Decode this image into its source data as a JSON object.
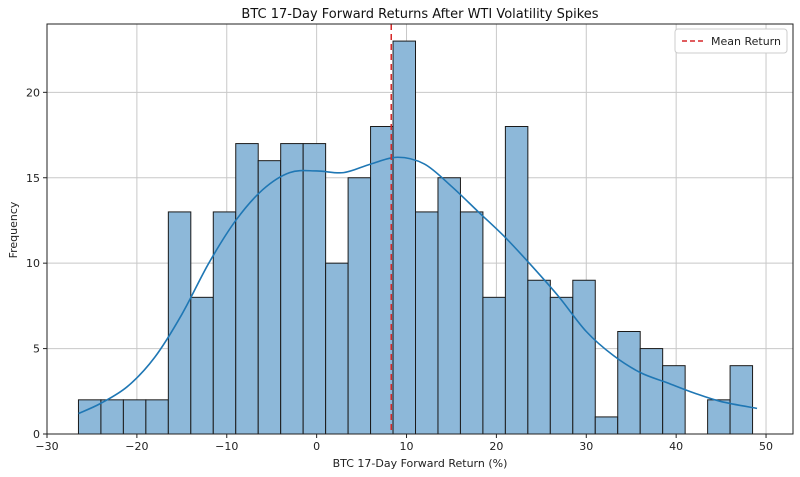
{
  "chart_data": {
    "type": "bar",
    "title": "BTC 17-Day Forward Returns After WTI Volatility Spikes",
    "xlabel": "BTC 17-Day Forward Return (%)",
    "ylabel": "Frequency",
    "xlim": [
      -30,
      53
    ],
    "ylim": [
      0,
      24
    ],
    "xticks": [
      -30,
      -20,
      -10,
      0,
      10,
      20,
      30,
      40,
      50
    ],
    "yticks": [
      0,
      5,
      10,
      15,
      20
    ],
    "grid": true,
    "legend_position": "top-right",
    "bins": {
      "edges": [
        -26.5,
        -24.0,
        -21.5,
        -19.0,
        -16.5,
        -14.0,
        -11.5,
        -9.0,
        -6.5,
        -4.0,
        -1.5,
        1.0,
        3.5,
        6.0,
        8.5,
        11.0,
        13.5,
        16.0,
        18.5,
        21.0,
        23.5,
        26.0,
        28.5,
        31.0,
        33.5,
        36.0,
        38.5,
        41.0,
        43.5,
        46.0,
        48.5
      ],
      "counts": [
        2,
        2,
        2,
        2,
        13,
        8,
        13,
        17,
        16,
        17,
        17,
        10,
        15,
        18,
        23,
        13,
        15,
        13,
        8,
        18,
        9,
        8,
        9,
        1,
        6,
        5,
        4,
        0,
        2,
        4
      ]
    },
    "kde": {
      "x": [
        -26.5,
        -24,
        -21,
        -18,
        -15,
        -12,
        -9,
        -6,
        -3,
        0,
        3,
        6,
        9,
        12,
        15,
        18,
        21,
        24,
        27,
        30,
        33,
        36,
        39,
        42,
        45,
        49
      ],
      "y": [
        1.2,
        1.8,
        2.8,
        4.5,
        7.0,
        10.0,
        12.5,
        14.3,
        15.3,
        15.4,
        15.3,
        15.8,
        16.2,
        15.8,
        14.5,
        13.0,
        11.5,
        9.8,
        8.0,
        6.0,
        4.6,
        3.6,
        3.0,
        2.4,
        1.9,
        1.5
      ]
    },
    "mean_line": {
      "x": 8.3,
      "label": "Mean Return",
      "color": "#d62728"
    },
    "colors": {
      "bar_fill": "#8db8d9",
      "bar_edge": "#1a1a1a",
      "kde": "#1f77b4",
      "grid": "#c8c8c8"
    }
  }
}
